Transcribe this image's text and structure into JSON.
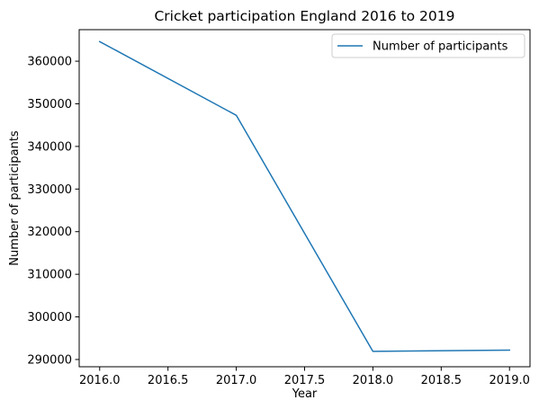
{
  "chart_data": {
    "type": "line",
    "title": "Cricket participation England 2016 to 2019",
    "xlabel": "Year",
    "ylabel": "Number of participants",
    "x": [
      2016.0,
      2017.0,
      2018.0,
      2019.0
    ],
    "series": [
      {
        "name": "Number of participants",
        "values": [
          364600,
          347300,
          291900,
          292200
        ],
        "color": "#1f77b4"
      }
    ],
    "xlim": [
      2015.85,
      2019.15
    ],
    "ylim": [
      288300,
      367400
    ],
    "xticks": [
      2016.0,
      2016.5,
      2017.0,
      2017.5,
      2018.0,
      2018.5,
      2019.0
    ],
    "xtick_labels": [
      "2016.0",
      "2016.5",
      "2017.0",
      "2017.5",
      "2018.0",
      "2018.5",
      "2019.0"
    ],
    "yticks": [
      290000,
      300000,
      310000,
      320000,
      330000,
      340000,
      350000,
      360000
    ],
    "ytick_labels": [
      "290000",
      "300000",
      "310000",
      "320000",
      "330000",
      "340000",
      "350000",
      "360000"
    ],
    "grid": false,
    "legend_position": "top-right"
  }
}
